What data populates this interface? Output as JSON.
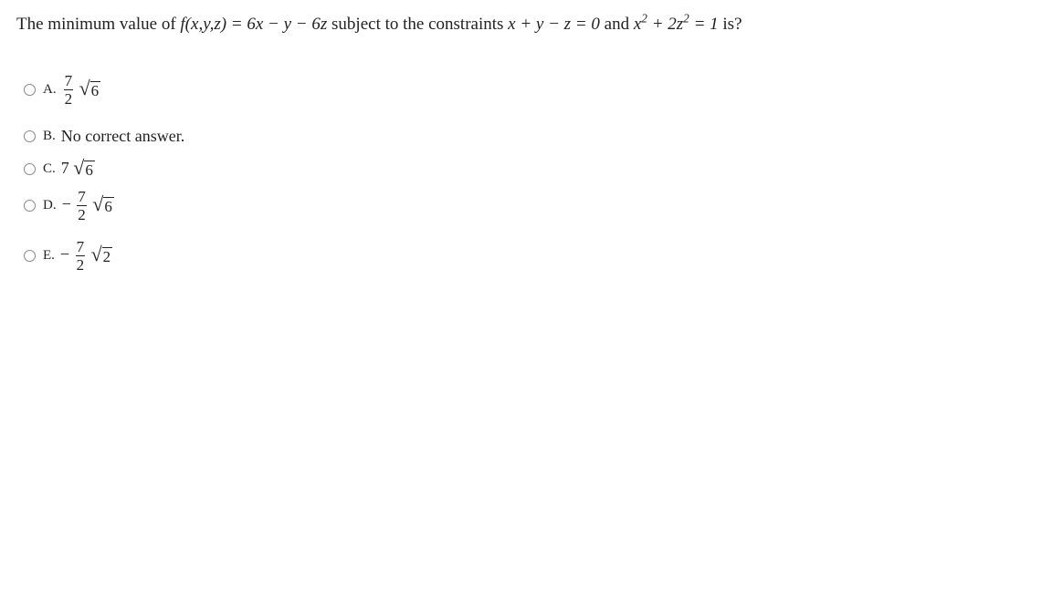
{
  "question": {
    "text_prefix": "The minimum value of ",
    "func_def": "f(x,y,z) = 6x − y − 6z",
    "text_mid1": " subject to the constraints ",
    "constraint1": "x + y − z = 0",
    "text_mid2": " and ",
    "constraint2_lhs": "x",
    "constraint2_exp1": "2",
    "constraint2_plus": " + 2z",
    "constraint2_exp2": "2",
    "constraint2_rhs": " = 1",
    "text_suffix": " is?"
  },
  "options": {
    "A": {
      "label": "A.",
      "frac_num": "7",
      "frac_den": "2",
      "sqrt_val": "6",
      "neg": ""
    },
    "B": {
      "label": "B.",
      "text": "No correct answer."
    },
    "C": {
      "label": "C.",
      "coef": "7",
      "sqrt_val": "6"
    },
    "D": {
      "label": "D.",
      "neg": "−",
      "frac_num": "7",
      "frac_den": "2",
      "sqrt_val": "6"
    },
    "E": {
      "label": "E.",
      "neg": "−",
      "frac_num": "7",
      "frac_den": "2",
      "sqrt_val": "2"
    }
  },
  "colors": {
    "text": "#222222",
    "background": "#ffffff"
  },
  "fonts": {
    "family": "Times New Roman",
    "base_size_pt": 14
  }
}
